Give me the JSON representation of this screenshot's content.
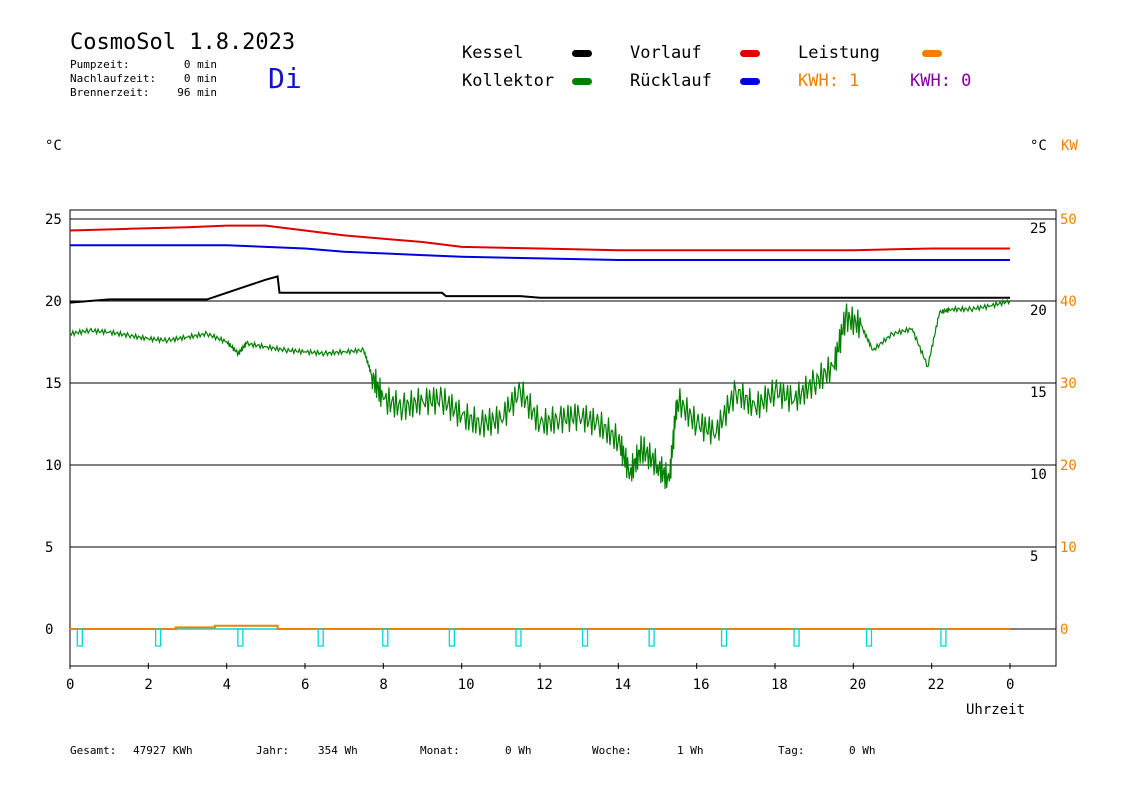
{
  "header": {
    "title": "CosmoSol 1.8.2023",
    "day": "Di",
    "stats": [
      {
        "label": "Pumpzeit:",
        "value": "0 min"
      },
      {
        "label": "Nachlaufzeit:",
        "value": "0 min"
      },
      {
        "label": "Brennerzeit:",
        "value": "96 min"
      }
    ]
  },
  "legend": {
    "kessel": {
      "label": "Kessel",
      "color": "#000000"
    },
    "kollektor": {
      "label": "Kollektor",
      "color": "#008000"
    },
    "vorlauf": {
      "label": "Vorlauf",
      "color": "#e00000"
    },
    "ruecklauf": {
      "label": "Rücklauf",
      "color": "#0000e0"
    },
    "leistung": {
      "label": "Leistung",
      "color": "#f08000"
    },
    "kwh1": {
      "label": "KWH: 1",
      "color": "#f08000"
    },
    "kwh2": {
      "label": "KWH: 0",
      "color": "#8000a0"
    }
  },
  "footer": [
    {
      "label": "Gesamt:",
      "value": "47927 KWh"
    },
    {
      "label": "Jahr:",
      "value": "354 Wh"
    },
    {
      "label": "Monat:",
      "value": "0 Wh"
    },
    {
      "label": "Woche:",
      "value": "1 Wh"
    },
    {
      "label": "Tag:",
      "value": "0 Wh"
    }
  ],
  "chart_data": {
    "type": "line",
    "xlabel": "Uhrzeit",
    "x_ticks": [
      "0",
      "2",
      "4",
      "6",
      "8",
      "10",
      "12",
      "14",
      "16",
      "18",
      "20",
      "22",
      "0"
    ],
    "xlim": [
      0,
      24
    ],
    "y_left": {
      "unit": "°C",
      "ylim": [
        -2,
        26
      ],
      "ticks": [
        0,
        5,
        10,
        15,
        20,
        25
      ]
    },
    "y_right_inner": {
      "ticks": [
        5,
        10,
        15,
        20,
        25
      ]
    },
    "y_right_outer": {
      "unit": "KW",
      "ticks": [
        0,
        10,
        20,
        30,
        40,
        50
      ],
      "color": "#f08000"
    },
    "grid": true,
    "series": [
      {
        "name": "Vorlauf",
        "color": "#e00000",
        "x": [
          0,
          1.5,
          3,
          4,
          5,
          6,
          7,
          8,
          9,
          10,
          12,
          14,
          16,
          18,
          20,
          22,
          24
        ],
        "y": [
          24.3,
          24.4,
          24.5,
          24.6,
          24.6,
          24.3,
          24.0,
          23.8,
          23.6,
          23.3,
          23.2,
          23.1,
          23.1,
          23.1,
          23.1,
          23.2,
          23.2
        ]
      },
      {
        "name": "Rücklauf",
        "color": "#0000e0",
        "x": [
          0,
          2,
          4,
          5,
          6,
          7,
          8,
          9,
          10,
          12,
          14,
          16,
          18,
          20,
          22,
          24
        ],
        "y": [
          23.4,
          23.4,
          23.4,
          23.3,
          23.2,
          23.0,
          22.9,
          22.8,
          22.7,
          22.6,
          22.5,
          22.5,
          22.5,
          22.5,
          22.5,
          22.5
        ]
      },
      {
        "name": "Kessel",
        "color": "#000000",
        "x": [
          0,
          1,
          3.5,
          4,
          4.5,
          5,
          5.3,
          5.35,
          7,
          9.5,
          9.6,
          11.5,
          12,
          24
        ],
        "y": [
          19.9,
          20.1,
          20.1,
          20.5,
          20.9,
          21.3,
          21.5,
          20.5,
          20.5,
          20.5,
          20.3,
          20.3,
          20.2,
          20.2
        ]
      },
      {
        "name": "Kollektor",
        "color": "#008000",
        "x": [
          0,
          0.5,
          1,
          1.5,
          2,
          2.5,
          3,
          3.5,
          4,
          4.3,
          4.5,
          5,
          5.5,
          6,
          6.5,
          7,
          7.5,
          7.7,
          8,
          8.5,
          9,
          9.5,
          10,
          10.5,
          11,
          11.5,
          12,
          12.5,
          13,
          13.5,
          14,
          14.3,
          14.6,
          15,
          15.3,
          15.5,
          16,
          16.5,
          17,
          17.5,
          18,
          18.5,
          19,
          19.5,
          19.8,
          20.2,
          20.5,
          21,
          21.5,
          21.9,
          22.2,
          22.5,
          23,
          23.5,
          24
        ],
        "y": [
          18.0,
          18.2,
          18.1,
          17.9,
          17.7,
          17.6,
          17.8,
          18.0,
          17.5,
          16.8,
          17.4,
          17.2,
          17.0,
          16.9,
          16.8,
          16.9,
          17.0,
          15.5,
          14.0,
          13.5,
          13.9,
          14.0,
          13.0,
          12.5,
          12.8,
          14.5,
          12.5,
          12.8,
          13.0,
          12.5,
          11.5,
          9.5,
          11.0,
          10.0,
          9.0,
          14.0,
          12.5,
          12.0,
          14.5,
          13.5,
          14.5,
          14.0,
          15.0,
          16.0,
          19.0,
          18.5,
          17.0,
          18.0,
          18.3,
          16.0,
          19.3,
          19.5,
          19.5,
          19.7,
          20.0
        ]
      },
      {
        "name": "Leistung",
        "color": "#f08000",
        "x": [
          0,
          2.7,
          2.7,
          3.7,
          3.7,
          5.3,
          5.3,
          24
        ],
        "y": [
          0,
          0,
          0.1,
          0.1,
          0.2,
          0.2,
          0,
          0
        ]
      },
      {
        "name": "Pumpe",
        "color": "#00d8d8",
        "pulses": [
          0.25,
          2.25,
          4.35,
          6.4,
          8.05,
          9.75,
          11.45,
          13.15,
          14.85,
          16.7,
          18.55,
          20.4,
          22.3
        ]
      }
    ]
  }
}
